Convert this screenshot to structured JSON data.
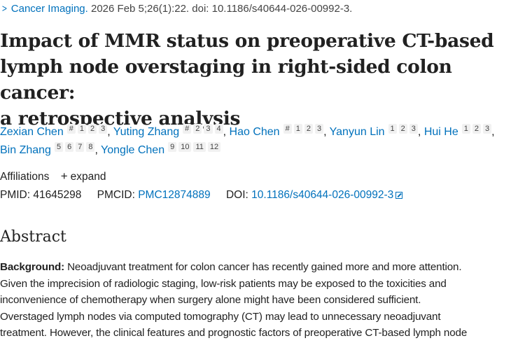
{
  "citation": {
    "journal": "Cancer Imaging.",
    "details": "2026 Feb 5;26(1):22. doi: 10.1186/s40644-026-00992-3."
  },
  "title": {
    "lines": [
      "Impact of MMR status on preoperative CT-based",
      "lymph node overstaging in right-sided colon cancer:",
      "a retrospective analysis"
    ]
  },
  "authors": [
    {
      "name": "Zexian Chen",
      "sups": [
        "#",
        "1",
        "2",
        "3"
      ]
    },
    {
      "name": "Yuting Zhang",
      "sups": [
        "#",
        "2",
        "3",
        "4"
      ]
    },
    {
      "name": "Hao Chen",
      "sups": [
        "#",
        "1",
        "2",
        "3"
      ]
    },
    {
      "name": "Yanyun Lin",
      "sups": [
        "1",
        "2",
        "3"
      ]
    },
    {
      "name": "Hui He",
      "sups": [
        "1",
        "2",
        "3"
      ]
    },
    {
      "name": "Bin Zhang",
      "sups": [
        "5",
        "6",
        "7",
        "8"
      ]
    },
    {
      "name": "Yongle Chen",
      "sups": [
        "9",
        "10",
        "11",
        "12"
      ]
    }
  ],
  "affiliations": {
    "label": "Affiliations",
    "expand_label": "expand"
  },
  "identifiers": {
    "pmid_label": "PMID:",
    "pmid": "41645298",
    "pmcid_label": "PMCID:",
    "pmcid": "PMC12874889",
    "doi_label": "DOI:",
    "doi": "10.1186/s40644-026-00992-3"
  },
  "abstract": {
    "heading": "Abstract",
    "background_label": "Background:",
    "lines": [
      "Neoadjuvant treatment for colon cancer has recently gained more and more attention.",
      "Given the imprecision of radiologic staging, low-risk patients may be exposed to the toxicities and",
      "inconvenience of chemotherapy when surgery alone might have been considered sufficient.",
      "Overstaged lymph nodes via computed tomography (CT) may lead to unnecessary neoadjuvant",
      "treatment. However, the clinical features and prognostic factors of preoperative CT-based lymph node"
    ]
  },
  "colors": {
    "link": "#0071bc",
    "text": "#212121",
    "sup_bg": "#f1f1f1"
  }
}
